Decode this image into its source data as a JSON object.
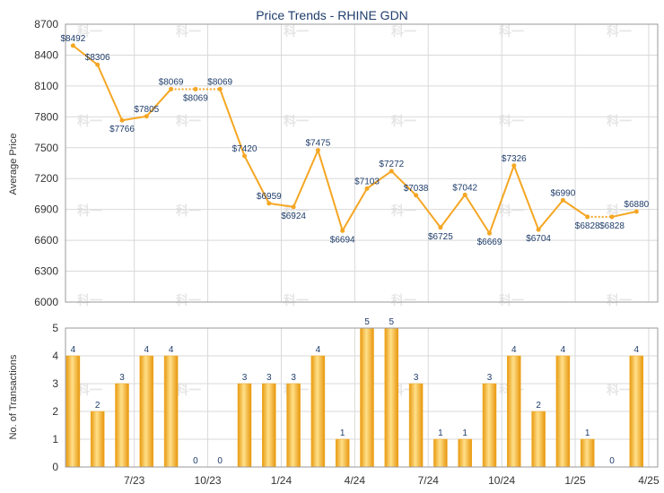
{
  "chart_data": [
    {
      "type": "line",
      "title": "Price Trends - RHINE GDN",
      "ylabel": "Average Price",
      "ylim": [
        6000,
        8700
      ],
      "yticks": [
        6000,
        6300,
        6600,
        6900,
        7200,
        7500,
        7800,
        8100,
        8400,
        8700
      ],
      "grid": true,
      "series": [
        {
          "color": "#f5a623",
          "values": [
            8492,
            8306,
            7766,
            7805,
            8069,
            8069,
            8069,
            7420,
            6959,
            6924,
            7475,
            6694,
            7103,
            7272,
            7038,
            6725,
            7042,
            6669,
            7326,
            6704,
            6990,
            6828,
            6828,
            6880
          ],
          "labels": [
            "$8492",
            "$8306",
            "$7766",
            "$7805",
            "$8069",
            "$8069",
            "$8069",
            "$7420",
            "$6959",
            "$6924",
            "$7475",
            "$6694",
            "$7103",
            "$7272",
            "$7038",
            "$6725",
            "$7042",
            "$6669",
            "$7326",
            "$6704",
            "$6990",
            "$6828",
            "$6828",
            "$6880"
          ],
          "interpolated_segments": [
            [
              4,
              6
            ],
            [
              21,
              22
            ]
          ]
        }
      ]
    },
    {
      "type": "bar",
      "ylabel": "No. of Transactions",
      "ylim": [
        0,
        5
      ],
      "yticks": [
        0,
        1,
        2,
        3,
        4,
        5
      ],
      "grid": true,
      "values": [
        4,
        2,
        3,
        4,
        4,
        0,
        0,
        3,
        3,
        3,
        4,
        1,
        5,
        5,
        3,
        1,
        1,
        3,
        4,
        2,
        4,
        1,
        0,
        4
      ],
      "xtick_labels": [
        "7/23",
        "10/23",
        "1/24",
        "4/24",
        "7/24",
        "10/24",
        "1/25",
        "4/25"
      ],
      "xtick_positions": [
        2.5,
        5.5,
        8.5,
        11.5,
        14.5,
        17.5,
        20.5,
        23.5
      ],
      "bar_color": "#f0a81e"
    }
  ],
  "watermark_text": "科一"
}
